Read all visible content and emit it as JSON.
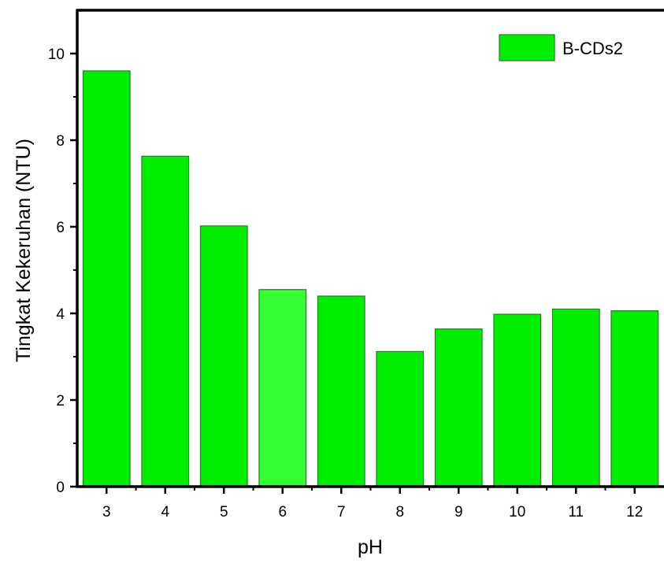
{
  "chart_data": {
    "type": "bar",
    "xlabel": "pH",
    "ylabel": "Tingkat Kekeruhan (NTU)",
    "ylim": [
      0,
      11
    ],
    "yticks": [
      0,
      2,
      4,
      6,
      8,
      10
    ],
    "categories": [
      "3",
      "4",
      "5",
      "6",
      "7",
      "8",
      "9",
      "10",
      "11",
      "12"
    ],
    "series": [
      {
        "name": "B-CDs2",
        "values": [
          9.6,
          7.63,
          6.02,
          4.55,
          4.4,
          3.12,
          3.64,
          3.98,
          4.1,
          4.06
        ]
      }
    ],
    "colors": {
      "bar_fill": "#00ee00",
      "bar_fill_highlight": "#33ff33",
      "bar_stroke": "#2a7a2a",
      "axis": "#000000"
    },
    "highlight_index": 3,
    "legend_position": "top-right",
    "grid": false
  }
}
